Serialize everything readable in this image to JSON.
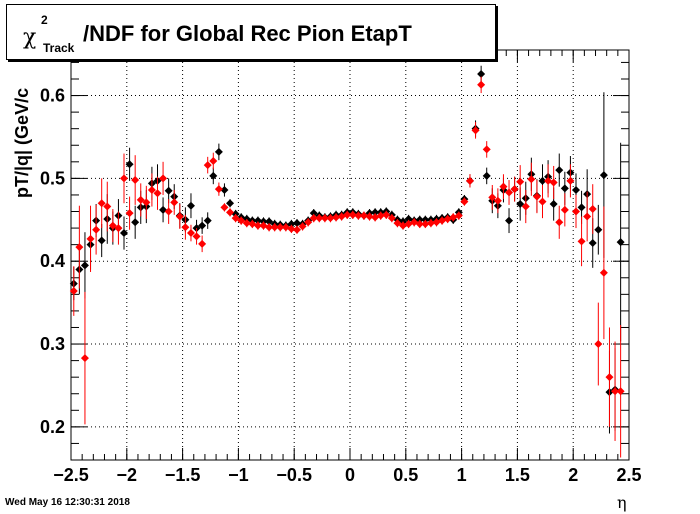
{
  "title": {
    "symbol": "χ",
    "superscript": "2",
    "subscript": "Track",
    "text": "/NDF for Global Rec Pion EtapT"
  },
  "timestamp": "Wed May 16 12:30:31 2018",
  "chart_data": {
    "type": "scatter",
    "xlabel": "η",
    "ylabel": "pT/|q| (GeV/c",
    "xlim": [
      -2.5,
      2.5
    ],
    "ylim": [
      0.16,
      0.655
    ],
    "grid": true,
    "xticks": [
      -2.5,
      -2,
      -1.5,
      -1,
      -0.5,
      0,
      0.5,
      1,
      1.5,
      2,
      2.5
    ],
    "xtick_labels": [
      "−2.5",
      "−2",
      "−1.5",
      "−1",
      "−0.5",
      "0",
      "0.5",
      "1",
      "1.5",
      "2",
      "2.5"
    ],
    "yticks": [
      0.2,
      0.3,
      0.4,
      0.5,
      0.6
    ],
    "ytick_labels": [
      "0.2",
      "0.3",
      "0.4",
      "0.5",
      "0.6"
    ],
    "series": [
      {
        "color": "#000000",
        "points": [
          [
            -2.475,
            0.373,
            0.02
          ],
          [
            -2.425,
            0.39,
            0.03
          ],
          [
            -2.375,
            0.395,
            0.04
          ],
          [
            -2.325,
            0.42,
            0.03
          ],
          [
            -2.275,
            0.449,
            0.02
          ],
          [
            -2.225,
            0.425,
            0.02
          ],
          [
            -2.175,
            0.451,
            0.03
          ],
          [
            -2.125,
            0.44,
            0.02
          ],
          [
            -2.075,
            0.455,
            0.02
          ],
          [
            -2.025,
            0.434,
            0.02
          ],
          [
            -1.975,
            0.517,
            0.02
          ],
          [
            -1.925,
            0.447,
            0.02
          ],
          [
            -1.875,
            0.465,
            0.02
          ],
          [
            -1.825,
            0.466,
            0.02
          ],
          [
            -1.775,
            0.494,
            0.02
          ],
          [
            -1.725,
            0.497,
            0.02
          ],
          [
            -1.675,
            0.462,
            0.015
          ],
          [
            -1.625,
            0.485,
            0.015
          ],
          [
            -1.575,
            0.478,
            0.015
          ],
          [
            -1.525,
            0.455,
            0.015
          ],
          [
            -1.475,
            0.45,
            0.015
          ],
          [
            -1.425,
            0.467,
            0.015
          ],
          [
            -1.375,
            0.44,
            0.01
          ],
          [
            -1.325,
            0.443,
            0.01
          ],
          [
            -1.275,
            0.449,
            0.01
          ],
          [
            -1.225,
            0.503,
            0.01
          ],
          [
            -1.175,
            0.532,
            0.01
          ],
          [
            -1.125,
            0.486,
            0.008
          ],
          [
            -1.075,
            0.47,
            0.005
          ],
          [
            -1.025,
            0.457,
            0.005
          ],
          [
            -0.975,
            0.453,
            0.005
          ],
          [
            -0.925,
            0.451,
            0.005
          ],
          [
            -0.875,
            0.449,
            0.005
          ],
          [
            -0.825,
            0.449,
            0.005
          ],
          [
            -0.775,
            0.448,
            0.005
          ],
          [
            -0.725,
            0.448,
            0.005
          ],
          [
            -0.675,
            0.445,
            0.005
          ],
          [
            -0.625,
            0.444,
            0.005
          ],
          [
            -0.575,
            0.443,
            0.005
          ],
          [
            -0.525,
            0.445,
            0.005
          ],
          [
            -0.475,
            0.446,
            0.005
          ],
          [
            -0.425,
            0.445,
            0.005
          ],
          [
            -0.375,
            0.449,
            0.005
          ],
          [
            -0.325,
            0.458,
            0.005
          ],
          [
            -0.275,
            0.455,
            0.005
          ],
          [
            -0.225,
            0.453,
            0.005
          ],
          [
            -0.175,
            0.454,
            0.005
          ],
          [
            -0.125,
            0.456,
            0.005
          ],
          [
            -0.075,
            0.456,
            0.005
          ],
          [
            -0.025,
            0.459,
            0.005
          ],
          [
            0.025,
            0.459,
            0.005
          ],
          [
            0.075,
            0.457,
            0.005
          ],
          [
            0.125,
            0.455,
            0.005
          ],
          [
            0.175,
            0.458,
            0.005
          ],
          [
            0.225,
            0.459,
            0.005
          ],
          [
            0.275,
            0.459,
            0.005
          ],
          [
            0.325,
            0.46,
            0.005
          ],
          [
            0.375,
            0.456,
            0.005
          ],
          [
            0.425,
            0.45,
            0.005
          ],
          [
            0.475,
            0.448,
            0.005
          ],
          [
            0.525,
            0.451,
            0.005
          ],
          [
            0.575,
            0.449,
            0.005
          ],
          [
            0.625,
            0.45,
            0.005
          ],
          [
            0.675,
            0.45,
            0.005
          ],
          [
            0.725,
            0.45,
            0.005
          ],
          [
            0.775,
            0.451,
            0.005
          ],
          [
            0.825,
            0.452,
            0.005
          ],
          [
            0.875,
            0.453,
            0.005
          ],
          [
            0.925,
            0.45,
            0.005
          ],
          [
            0.975,
            0.459,
            0.005
          ],
          [
            1.025,
            0.475,
            0.005
          ],
          [
            1.075,
            0.497,
            0.008
          ],
          [
            1.125,
            0.56,
            0.01
          ],
          [
            1.175,
            0.626,
            0.01
          ],
          [
            1.225,
            0.503,
            0.01
          ],
          [
            1.275,
            0.473,
            0.015
          ],
          [
            1.325,
            0.467,
            0.015
          ],
          [
            1.375,
            0.486,
            0.015
          ],
          [
            1.425,
            0.449,
            0.015
          ],
          [
            1.475,
            0.487,
            0.015
          ],
          [
            1.525,
            0.469,
            0.02
          ],
          [
            1.575,
            0.476,
            0.02
          ],
          [
            1.625,
            0.505,
            0.02
          ],
          [
            1.675,
            0.479,
            0.02
          ],
          [
            1.725,
            0.497,
            0.02
          ],
          [
            1.775,
            0.502,
            0.02
          ],
          [
            1.825,
            0.469,
            0.02
          ],
          [
            1.875,
            0.51,
            0.02
          ],
          [
            1.925,
            0.488,
            0.02
          ],
          [
            1.975,
            0.507,
            0.02
          ],
          [
            2.025,
            0.486,
            0.02
          ],
          [
            2.075,
            0.465,
            0.02
          ],
          [
            2.125,
            0.481,
            0.03
          ],
          [
            2.175,
            0.422,
            0.03
          ],
          [
            2.225,
            0.438,
            0.03
          ],
          [
            2.275,
            0.504,
            0.1
          ],
          [
            2.325,
            0.242,
            0.05
          ],
          [
            2.375,
            0.245,
            0.05
          ],
          [
            2.425,
            0.423,
            0.12
          ]
        ]
      },
      {
        "color": "#ff0000",
        "points": [
          [
            -2.475,
            0.364,
            0.03
          ],
          [
            -2.425,
            0.417,
            0.05
          ],
          [
            -2.375,
            0.283,
            0.08
          ],
          [
            -2.325,
            0.427,
            0.04
          ],
          [
            -2.275,
            0.438,
            0.03
          ],
          [
            -2.225,
            0.47,
            0.03
          ],
          [
            -2.175,
            0.466,
            0.03
          ],
          [
            -2.125,
            0.443,
            0.02
          ],
          [
            -2.075,
            0.44,
            0.02
          ],
          [
            -2.025,
            0.5,
            0.03
          ],
          [
            -1.975,
            0.458,
            0.02
          ],
          [
            -1.925,
            0.498,
            0.03
          ],
          [
            -1.875,
            0.474,
            0.02
          ],
          [
            -1.825,
            0.471,
            0.02
          ],
          [
            -1.775,
            0.486,
            0.02
          ],
          [
            -1.725,
            0.482,
            0.02
          ],
          [
            -1.675,
            0.5,
            0.02
          ],
          [
            -1.625,
            0.46,
            0.015
          ],
          [
            -1.575,
            0.471,
            0.015
          ],
          [
            -1.525,
            0.454,
            0.015
          ],
          [
            -1.475,
            0.441,
            0.015
          ],
          [
            -1.425,
            0.434,
            0.01
          ],
          [
            -1.375,
            0.43,
            0.01
          ],
          [
            -1.325,
            0.421,
            0.01
          ],
          [
            -1.275,
            0.516,
            0.01
          ],
          [
            -1.225,
            0.521,
            0.01
          ],
          [
            -1.175,
            0.487,
            0.008
          ],
          [
            -1.125,
            0.465,
            0.005
          ],
          [
            -1.075,
            0.459,
            0.005
          ],
          [
            -1.025,
            0.452,
            0.005
          ],
          [
            -0.975,
            0.449,
            0.005
          ],
          [
            -0.925,
            0.446,
            0.005
          ],
          [
            -0.875,
            0.445,
            0.005
          ],
          [
            -0.825,
            0.443,
            0.005
          ],
          [
            -0.775,
            0.443,
            0.005
          ],
          [
            -0.725,
            0.441,
            0.005
          ],
          [
            -0.675,
            0.441,
            0.005
          ],
          [
            -0.625,
            0.441,
            0.005
          ],
          [
            -0.575,
            0.441,
            0.005
          ],
          [
            -0.525,
            0.439,
            0.005
          ],
          [
            -0.475,
            0.438,
            0.005
          ],
          [
            -0.425,
            0.442,
            0.005
          ],
          [
            -0.375,
            0.447,
            0.005
          ],
          [
            -0.325,
            0.452,
            0.005
          ],
          [
            -0.275,
            0.452,
            0.005
          ],
          [
            -0.225,
            0.452,
            0.005
          ],
          [
            -0.175,
            0.452,
            0.005
          ],
          [
            -0.125,
            0.453,
            0.005
          ],
          [
            -0.075,
            0.454,
            0.005
          ],
          [
            -0.025,
            0.456,
            0.005
          ],
          [
            0.025,
            0.456,
            0.005
          ],
          [
            0.075,
            0.455,
            0.005
          ],
          [
            0.125,
            0.455,
            0.005
          ],
          [
            0.175,
            0.454,
            0.005
          ],
          [
            0.225,
            0.453,
            0.005
          ],
          [
            0.275,
            0.455,
            0.005
          ],
          [
            0.325,
            0.456,
            0.005
          ],
          [
            0.375,
            0.452,
            0.005
          ],
          [
            0.425,
            0.446,
            0.005
          ],
          [
            0.475,
            0.443,
            0.005
          ],
          [
            0.525,
            0.445,
            0.005
          ],
          [
            0.575,
            0.447,
            0.005
          ],
          [
            0.625,
            0.445,
            0.005
          ],
          [
            0.675,
            0.445,
            0.005
          ],
          [
            0.725,
            0.446,
            0.005
          ],
          [
            0.775,
            0.447,
            0.005
          ],
          [
            0.825,
            0.449,
            0.005
          ],
          [
            0.875,
            0.451,
            0.005
          ],
          [
            0.925,
            0.453,
            0.005
          ],
          [
            0.975,
            0.455,
            0.005
          ],
          [
            1.025,
            0.472,
            0.005
          ],
          [
            1.075,
            0.497,
            0.008
          ],
          [
            1.125,
            0.558,
            0.01
          ],
          [
            1.175,
            0.613,
            0.01
          ],
          [
            1.225,
            0.535,
            0.01
          ],
          [
            1.275,
            0.477,
            0.015
          ],
          [
            1.325,
            0.473,
            0.015
          ],
          [
            1.375,
            0.49,
            0.015
          ],
          [
            1.425,
            0.483,
            0.015
          ],
          [
            1.475,
            0.487,
            0.015
          ],
          [
            1.525,
            0.496,
            0.02
          ],
          [
            1.575,
            0.466,
            0.02
          ],
          [
            1.625,
            0.499,
            0.02
          ],
          [
            1.675,
            0.478,
            0.02
          ],
          [
            1.725,
            0.472,
            0.02
          ],
          [
            1.775,
            0.497,
            0.02
          ],
          [
            1.825,
            0.495,
            0.02
          ],
          [
            1.875,
            0.447,
            0.02
          ],
          [
            1.925,
            0.462,
            0.02
          ],
          [
            1.975,
            0.497,
            0.02
          ],
          [
            2.025,
            0.46,
            0.02
          ],
          [
            2.075,
            0.424,
            0.03
          ],
          [
            2.125,
            0.454,
            0.03
          ],
          [
            2.175,
            0.463,
            0.03
          ],
          [
            2.225,
            0.3,
            0.05
          ],
          [
            2.275,
            0.386,
            0.08
          ],
          [
            2.325,
            0.26,
            0.06
          ],
          [
            2.375,
            0.243,
            0.06
          ],
          [
            2.425,
            0.243,
            0.08
          ]
        ]
      }
    ]
  }
}
